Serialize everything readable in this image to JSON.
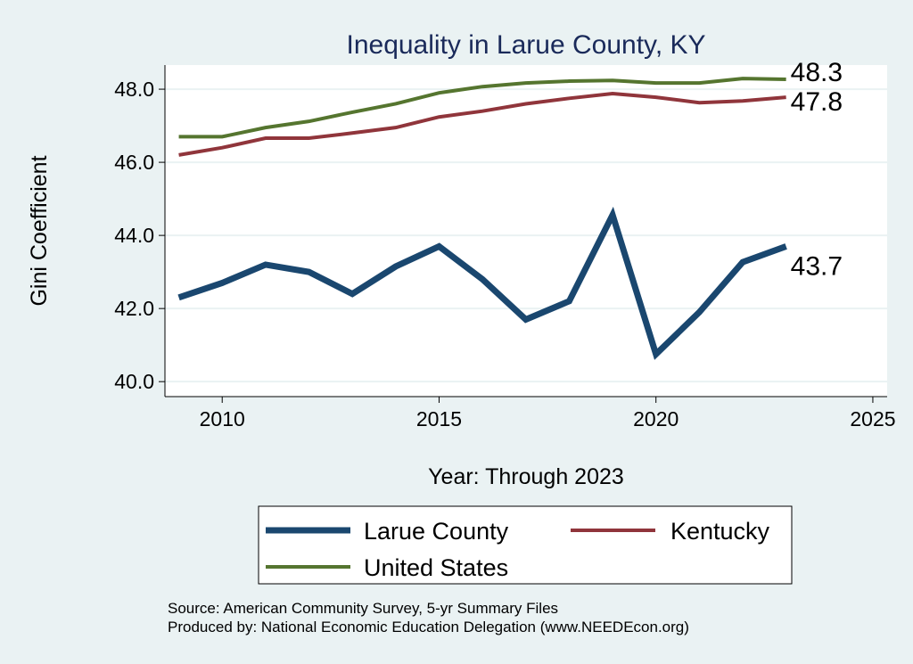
{
  "chart_data": {
    "type": "line",
    "title": "Inequality in Larue County, KY",
    "xlabel": "Year: Through 2023",
    "ylabel": "Gini Coefficient",
    "xlim": [
      2008.68,
      2025.33
    ],
    "ylim": [
      39.59,
      48.66
    ],
    "xticks": [
      2010,
      2015,
      2020,
      2025
    ],
    "yticks": [
      40.0,
      42.0,
      44.0,
      46.0,
      48.0
    ],
    "ytick_labels": [
      "40.0",
      "42.0",
      "44.0",
      "46.0",
      "48.0"
    ],
    "grid": true,
    "x": [
      2009,
      2010,
      2011,
      2012,
      2013,
      2014,
      2015,
      2016,
      2017,
      2018,
      2019,
      2020,
      2021,
      2022,
      2023
    ],
    "series": [
      {
        "name": "Larue County",
        "color": "#1a476f",
        "width": 7,
        "end_label": "43.7",
        "values": [
          42.3,
          42.7,
          43.2,
          43.0,
          42.4,
          43.15,
          43.7,
          42.8,
          41.7,
          42.2,
          44.56,
          40.75,
          41.9,
          43.27,
          43.7
        ]
      },
      {
        "name": "Kentucky",
        "color": "#90353b",
        "width": 4,
        "end_label": "47.8",
        "values": [
          46.2,
          46.4,
          46.66,
          46.66,
          46.8,
          46.95,
          47.24,
          47.4,
          47.6,
          47.75,
          47.88,
          47.78,
          47.63,
          47.68,
          47.78
        ]
      },
      {
        "name": "United States",
        "color": "#55752f",
        "width": 4,
        "end_label": "48.3",
        "values": [
          46.7,
          46.7,
          46.95,
          47.12,
          47.37,
          47.6,
          47.9,
          48.07,
          48.17,
          48.22,
          48.24,
          48.17,
          48.17,
          48.29,
          48.27
        ]
      }
    ],
    "legend_placement": "bottom",
    "notes": [
      "Source: American Community Survey, 5-yr Summary Files",
      "Produced by: National Economic Education Delegation (www.NEEDEcon.org)"
    ]
  }
}
